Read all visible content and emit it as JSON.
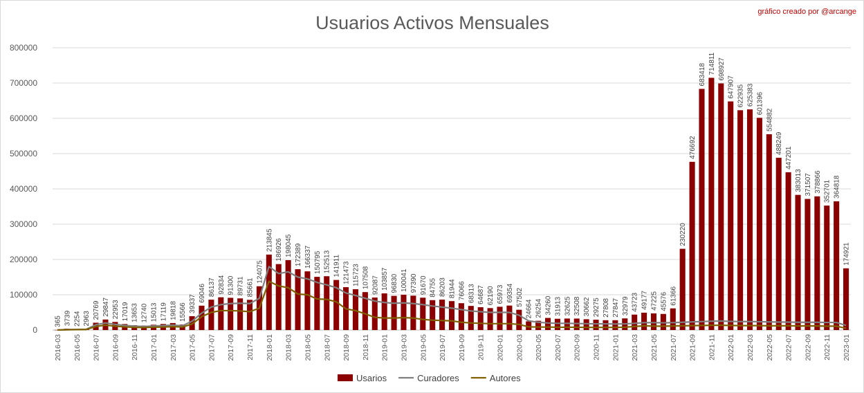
{
  "chart_data": {
    "type": "bar",
    "title": "Usuarios Activos Mensuales",
    "credit": "gráfico creado por @arcange",
    "xlabel": "",
    "ylabel": "",
    "ylim": [
      0,
      800000
    ],
    "yticks": [
      0,
      100000,
      200000,
      300000,
      400000,
      500000,
      600000,
      700000,
      800000
    ],
    "grid": true,
    "legend_position": "bottom",
    "colors": {
      "Usarios": "#8b0000",
      "Curadores": "#7f7f7f",
      "Autores": "#7f6000"
    },
    "categories": [
      "2016-03",
      "2016-04",
      "2016-05",
      "2016-06",
      "2016-07",
      "2016-08",
      "2016-09",
      "2016-10",
      "2016-11",
      "2016-12",
      "2017-01",
      "2017-02",
      "2017-03",
      "2017-04",
      "2017-05",
      "2017-06",
      "2017-07",
      "2017-08",
      "2017-09",
      "2017-10",
      "2017-11",
      "2017-12",
      "2018-01",
      "2018-02",
      "2018-03",
      "2018-04",
      "2018-05",
      "2018-06",
      "2018-07",
      "2018-08",
      "2018-09",
      "2018-10",
      "2018-11",
      "2018-12",
      "2019-01",
      "2019-02",
      "2019-03",
      "2019-04",
      "2019-05",
      "2019-06",
      "2019-07",
      "2019-08",
      "2019-09",
      "2019-10",
      "2019-11",
      "2019-12",
      "2020-01",
      "2020-02",
      "2020-03",
      "2020-04",
      "2020-05",
      "2020-06",
      "2020-07",
      "2020-08",
      "2020-09",
      "2020-10",
      "2020-11",
      "2020-12",
      "2021-01",
      "2021-02",
      "2021-03",
      "2021-04",
      "2021-05",
      "2021-06",
      "2021-07",
      "2021-08",
      "2021-09",
      "2021-10",
      "2021-11",
      "2021-12",
      "2022-01",
      "2022-02",
      "2022-03",
      "2022-04",
      "2022-05",
      "2022-06",
      "2022-07",
      "2022-08",
      "2022-09",
      "2022-10",
      "2022-11",
      "2022-12",
      "2023-01"
    ],
    "tick_labels": [
      "2016-03",
      "2016-05",
      "2016-07",
      "2016-09",
      "2016-11",
      "2017-01",
      "2017-03",
      "2017-05",
      "2017-07",
      "2017-09",
      "2017-11",
      "2018-01",
      "2018-03",
      "2018-05",
      "2018-07",
      "2018-09",
      "2018-11",
      "2019-01",
      "2019-03",
      "2019-05",
      "2019-07",
      "2019-09",
      "2019-11",
      "2020-01",
      "2020-03",
      "2020-05",
      "2020-07",
      "2020-09",
      "2020-11",
      "2021-01",
      "2021-03",
      "2021-05",
      "2021-07",
      "2021-09",
      "2021-11",
      "2022-01",
      "2022-03",
      "2022-05",
      "2022-07",
      "2022-09",
      "2022-11",
      "2023-01"
    ],
    "series": [
      {
        "name": "Usarios",
        "type": "bar",
        "values": [
          365,
          3739,
          2254,
          2963,
          20769,
          29847,
          22953,
          17019,
          13653,
          12740,
          15013,
          17119,
          19818,
          15566,
          39337,
          69046,
          86137,
          92834,
          91300,
          89731,
          85661,
          124075,
          213845,
          186926,
          198045,
          172389,
          166337,
          150795,
          152513,
          141911,
          121473,
          115723,
          107508,
          92087,
          103857,
          96830,
          100041,
          97390,
          91670,
          84755,
          86203,
          81944,
          76066,
          68313,
          64687,
          62190,
          65973,
          69354,
          57502,
          24664,
          26254,
          34260,
          31913,
          32625,
          32508,
          30662,
          29275,
          27808,
          27847,
          32979,
          43723,
          49177,
          47225,
          45576,
          61366,
          230220,
          476692,
          683418,
          714811,
          698927,
          647907,
          622935,
          625383,
          601396,
          554882,
          488249,
          447201,
          383013,
          371507,
          378866,
          352701,
          364818,
          174921
        ],
        "labels": [
          "365",
          "3739",
          "2254",
          "2963",
          "20769",
          "29847",
          "22953",
          "17019",
          "13653",
          "12740",
          "15013",
          "17119",
          "19818",
          "15566",
          "39337",
          "69046",
          "86137",
          "92834",
          "91300",
          "89731",
          "85661",
          "124075",
          "213845",
          "186926",
          "198045",
          "172389",
          "166337",
          "150795",
          "152513",
          "141911",
          "121473",
          "115723",
          "107508",
          "92087",
          "103857",
          "96830",
          "100041",
          "97390",
          "91670",
          "84755",
          "86203",
          "81944",
          "76066",
          "68313",
          "64687",
          "62190",
          "65973",
          "69354",
          "57502",
          "24664",
          "26254",
          "34260",
          "31913",
          "32625",
          "32508",
          "30662",
          "29275",
          "27808",
          "27847",
          "32979",
          "43723",
          "49177",
          "47225",
          "45576",
          "61366",
          "230220",
          "476692",
          "683418",
          "714811",
          "698927",
          "647907",
          "622935",
          "625383",
          "601396",
          "554882",
          "488249",
          "447201",
          "383013",
          "371507",
          "378866",
          "352701",
          "364818",
          "174921"
        ]
      },
      {
        "name": "Curadores",
        "type": "line",
        "values": [
          300,
          1200,
          1800,
          2200,
          15000,
          20000,
          16000,
          13000,
          11000,
          10000,
          11500,
          12500,
          14000,
          12000,
          25000,
          48000,
          65000,
          72000,
          75000,
          76000,
          75000,
          90000,
          180000,
          160000,
          165000,
          150000,
          145000,
          135000,
          128000,
          120000,
          105000,
          98000,
          90000,
          82000,
          78000,
          76000,
          77000,
          75000,
          72000,
          68000,
          65000,
          62000,
          58000,
          54000,
          52000,
          50000,
          50000,
          50000,
          42000,
          26000,
          22000,
          20000,
          19000,
          19000,
          18500,
          18000,
          17500,
          17500,
          17000,
          17500,
          19000,
          21000,
          21000,
          20500,
          21000,
          22000,
          23000,
          24000,
          25000,
          25500,
          24500,
          24000,
          24000,
          23500,
          23000,
          22500,
          22500,
          22000,
          22000,
          22000,
          21500,
          21500,
          13000
        ]
      },
      {
        "name": "Autores",
        "type": "line",
        "values": [
          200,
          800,
          1200,
          1500,
          10000,
          14000,
          11000,
          9000,
          7500,
          7000,
          8000,
          8500,
          9500,
          8500,
          17000,
          38000,
          50000,
          55000,
          55000,
          54000,
          52000,
          62000,
          138000,
          125000,
          120000,
          102000,
          100000,
          88000,
          87000,
          80000,
          60000,
          55000,
          46000,
          36000,
          34000,
          34000,
          35000,
          34000,
          30000,
          28000,
          27000,
          26000,
          22000,
          20000,
          19000,
          18000,
          18000,
          18000,
          16000,
          9000,
          8500,
          8500,
          8000,
          8000,
          8000,
          7500,
          7500,
          7500,
          7500,
          8000,
          10000,
          12000,
          11000,
          11000,
          11500,
          12000,
          12500,
          13000,
          13500,
          13500,
          13000,
          12500,
          12500,
          12500,
          12000,
          12000,
          12000,
          11500,
          11500,
          11500,
          11000,
          11000,
          5000
        ]
      }
    ]
  }
}
